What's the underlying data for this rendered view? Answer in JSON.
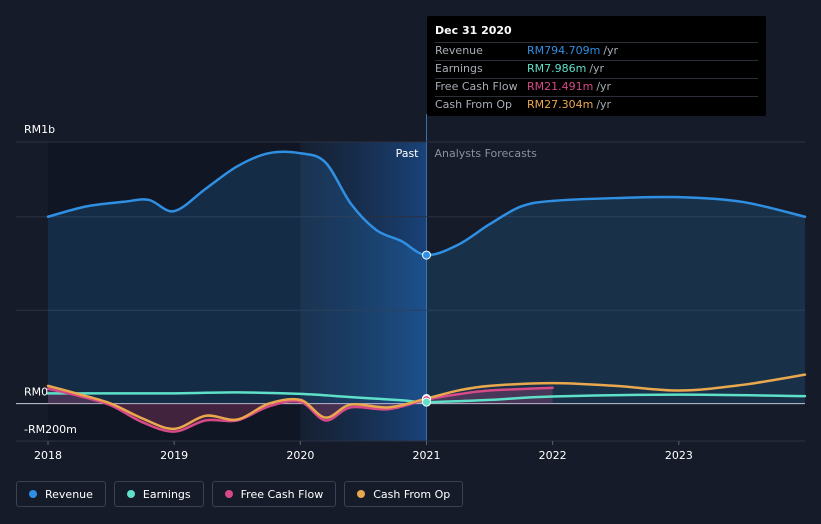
{
  "chart_data": {
    "type": "line",
    "x_ticks": [
      "2018",
      "2019",
      "2020",
      "2021",
      "2022",
      "2023"
    ],
    "y_ticks": [
      {
        "label": "RM1b",
        "value": 1000
      },
      {
        "label": "RM0",
        "value": 0
      },
      {
        "label": "-RM200m",
        "value": -200
      }
    ],
    "ylim": [
      -200,
      1400
    ],
    "x_range": [
      2018.0,
      2024.0
    ],
    "regions": {
      "past": "Past",
      "forecast": "Analysts Forecasts",
      "divider_x": 2021.0
    },
    "series": [
      {
        "name": "Revenue",
        "color": "#2f8fe3",
        "fill": true,
        "points": [
          [
            2018.0,
            1000
          ],
          [
            2018.3,
            1055
          ],
          [
            2018.6,
            1080
          ],
          [
            2018.8,
            1090
          ],
          [
            2019.0,
            1030
          ],
          [
            2019.25,
            1150
          ],
          [
            2019.5,
            1270
          ],
          [
            2019.75,
            1340
          ],
          [
            2020.0,
            1340
          ],
          [
            2020.2,
            1290
          ],
          [
            2020.4,
            1070
          ],
          [
            2020.6,
            930
          ],
          [
            2020.8,
            870
          ],
          [
            2021.0,
            795
          ],
          [
            2021.25,
            850
          ],
          [
            2021.5,
            960
          ],
          [
            2021.75,
            1055
          ],
          [
            2022.0,
            1085
          ],
          [
            2022.5,
            1100
          ],
          [
            2023.0,
            1105
          ],
          [
            2023.5,
            1080
          ],
          [
            2024.0,
            1000
          ]
        ]
      },
      {
        "name": "Earnings",
        "color": "#5ee0c9",
        "fill": false,
        "points": [
          [
            2018.0,
            55
          ],
          [
            2018.5,
            55
          ],
          [
            2019.0,
            55
          ],
          [
            2019.5,
            60
          ],
          [
            2020.0,
            52
          ],
          [
            2020.4,
            35
          ],
          [
            2020.8,
            18
          ],
          [
            2021.0,
            8
          ],
          [
            2021.5,
            20
          ],
          [
            2022.0,
            38
          ],
          [
            2023.0,
            48
          ],
          [
            2024.0,
            40
          ]
        ]
      },
      {
        "name": "Free Cash Flow",
        "color": "#d64a87",
        "fill": true,
        "points": [
          [
            2018.0,
            80
          ],
          [
            2018.25,
            40
          ],
          [
            2018.5,
            -10
          ],
          [
            2018.75,
            -100
          ],
          [
            2019.0,
            -150
          ],
          [
            2019.25,
            -90
          ],
          [
            2019.5,
            -90
          ],
          [
            2019.75,
            -15
          ],
          [
            2020.0,
            10
          ],
          [
            2020.2,
            -90
          ],
          [
            2020.4,
            -20
          ],
          [
            2020.7,
            -30
          ],
          [
            2021.0,
            21
          ],
          [
            2021.25,
            50
          ],
          [
            2021.5,
            70
          ],
          [
            2022.0,
            85
          ]
        ]
      },
      {
        "name": "Cash From Op",
        "color": "#eaa84e",
        "fill": false,
        "points": [
          [
            2018.0,
            95
          ],
          [
            2018.25,
            50
          ],
          [
            2018.5,
            0
          ],
          [
            2018.75,
            -80
          ],
          [
            2019.0,
            -135
          ],
          [
            2019.25,
            -65
          ],
          [
            2019.5,
            -85
          ],
          [
            2019.75,
            0
          ],
          [
            2020.0,
            20
          ],
          [
            2020.2,
            -75
          ],
          [
            2020.4,
            -5
          ],
          [
            2020.7,
            -20
          ],
          [
            2021.0,
            27
          ],
          [
            2021.25,
            70
          ],
          [
            2021.5,
            95
          ],
          [
            2022.0,
            110
          ],
          [
            2022.5,
            95
          ],
          [
            2023.0,
            70
          ],
          [
            2023.5,
            100
          ],
          [
            2024.0,
            155
          ]
        ]
      }
    ],
    "highlight": {
      "x": 2021.0,
      "revenue": 794.709,
      "earnings": 7.986,
      "fcf": 21.491,
      "cfo": 27.304
    }
  },
  "tooltip": {
    "date": "Dec 31 2020",
    "rows": [
      {
        "name": "Revenue",
        "value": "RM794.709m",
        "unit": "/yr",
        "color": "#2f8fe3"
      },
      {
        "name": "Earnings",
        "value": "RM7.986m",
        "unit": "/yr",
        "color": "#5ee0c9"
      },
      {
        "name": "Free Cash Flow",
        "value": "RM21.491m",
        "unit": "/yr",
        "color": "#d64a87"
      },
      {
        "name": "Cash From Op",
        "value": "RM27.304m",
        "unit": "/yr",
        "color": "#eaa84e"
      }
    ]
  },
  "legend": [
    {
      "label": "Revenue",
      "color": "#2f8fe3"
    },
    {
      "label": "Earnings",
      "color": "#5ee0c9"
    },
    {
      "label": "Free Cash Flow",
      "color": "#d64a87"
    },
    {
      "label": "Cash From Op",
      "color": "#eaa84e"
    }
  ]
}
